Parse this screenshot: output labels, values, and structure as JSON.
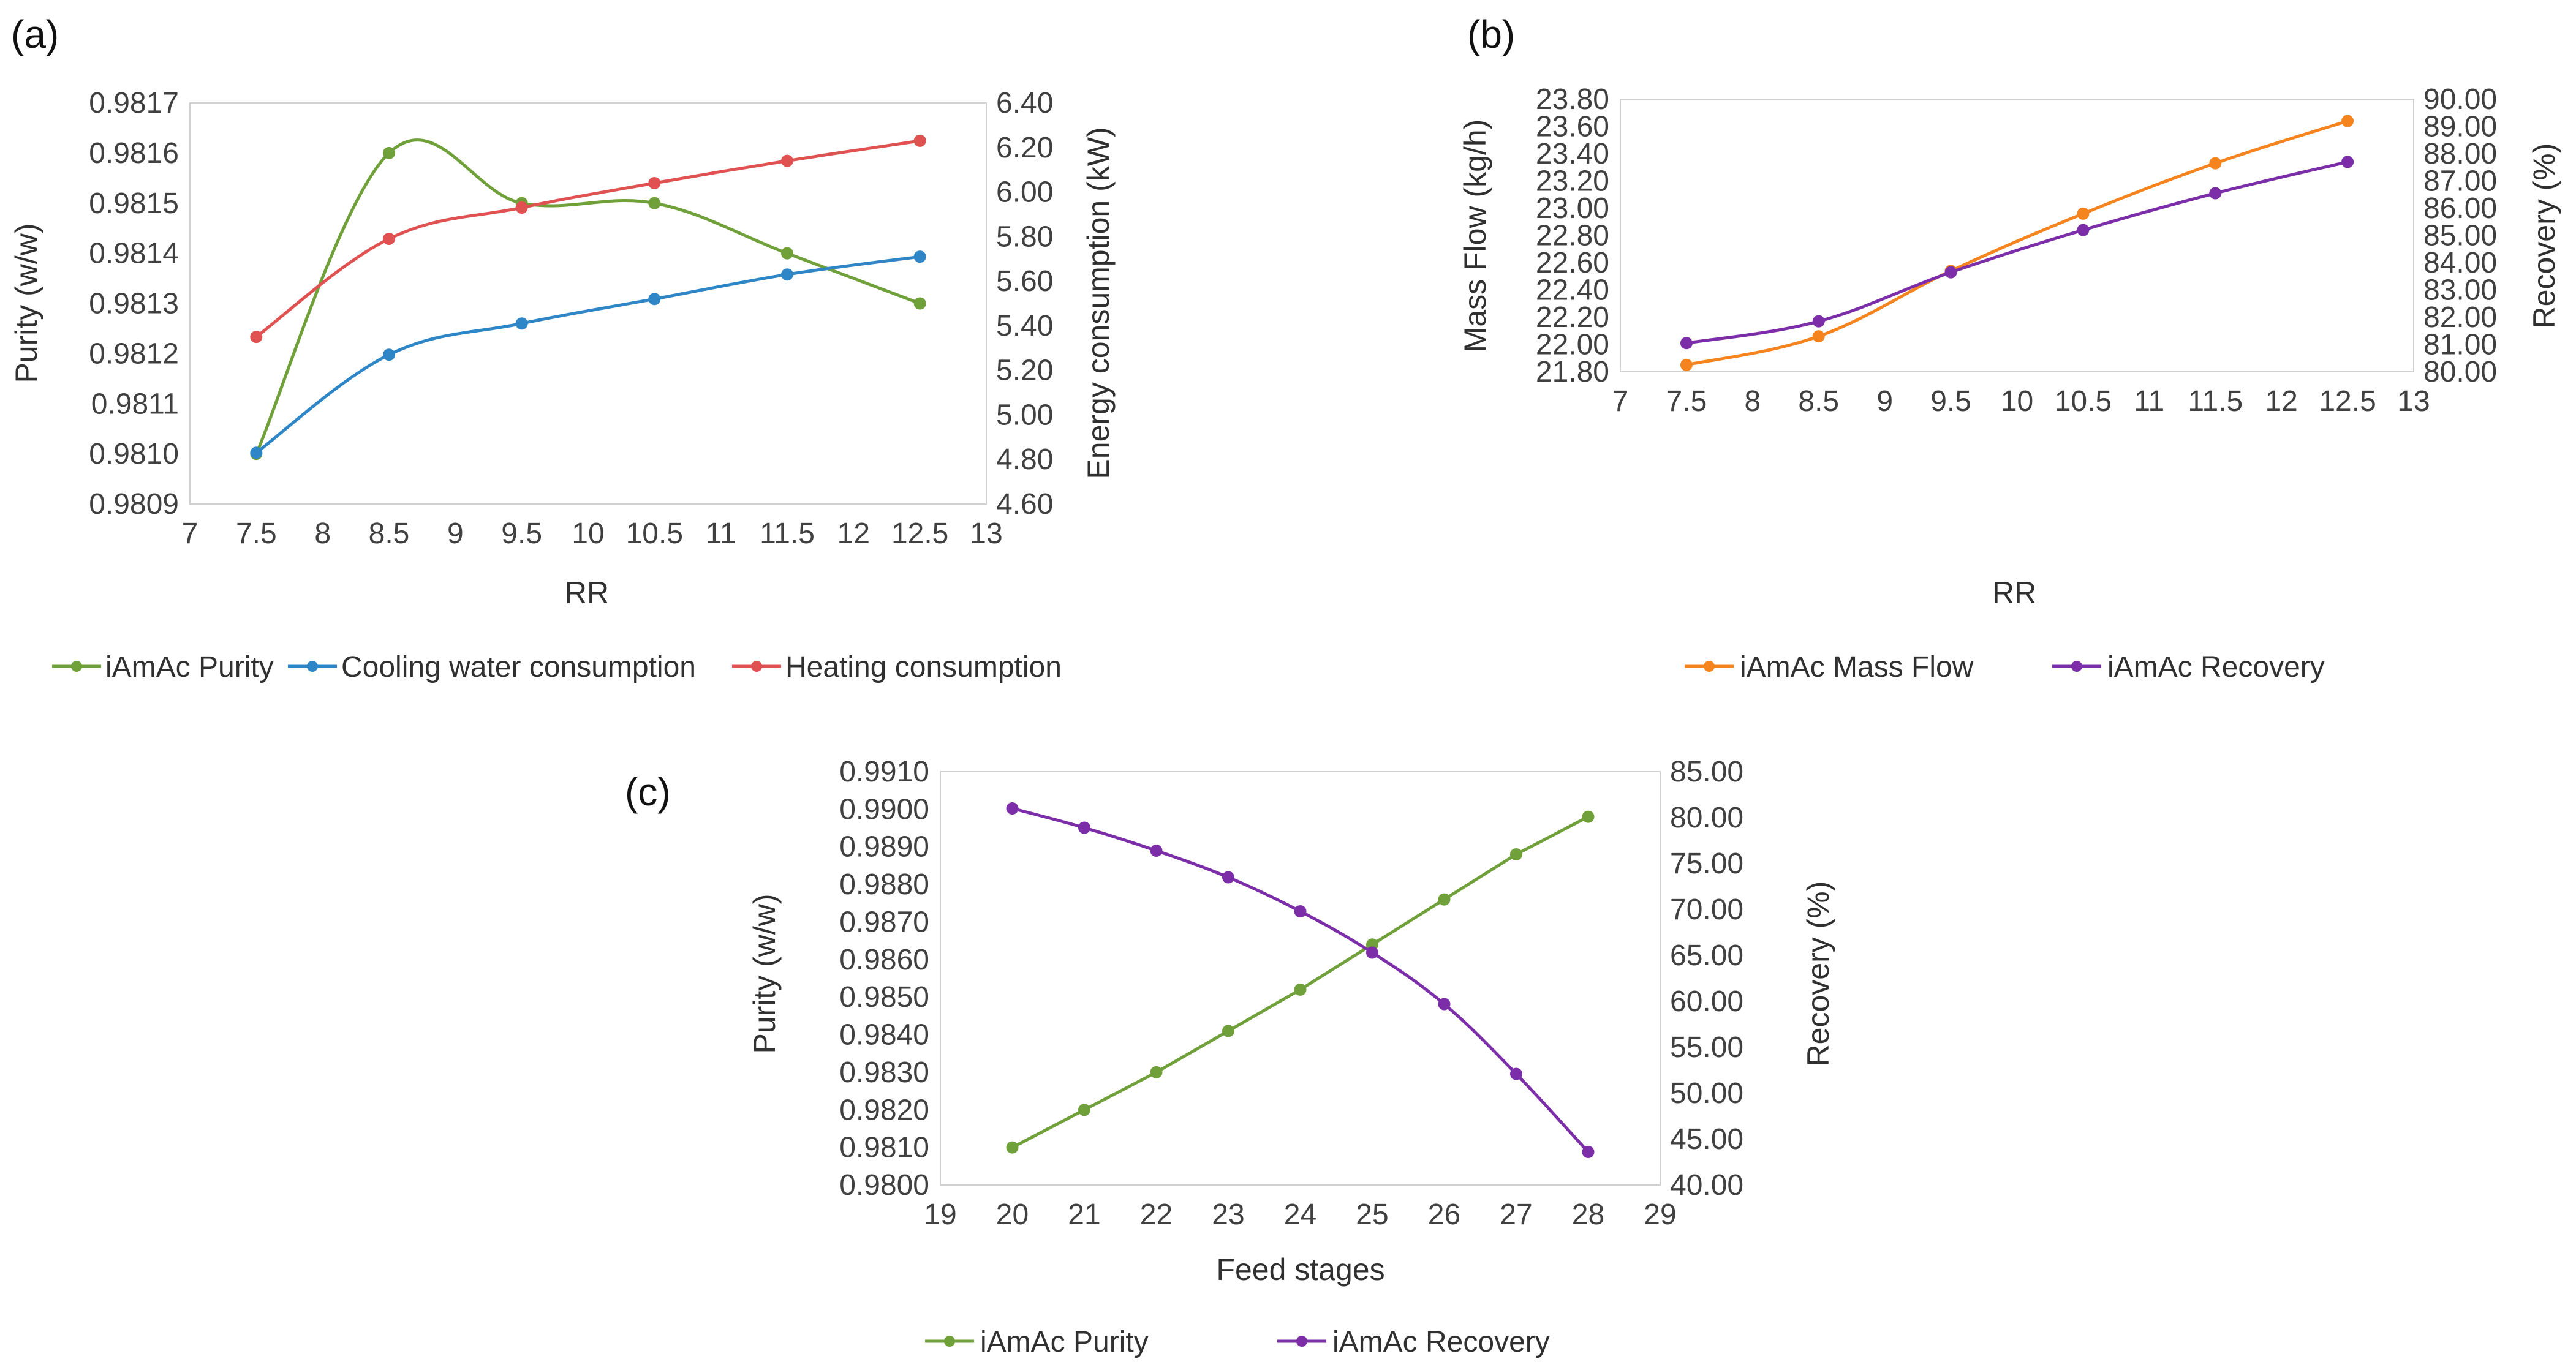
{
  "chart_data": [
    {
      "panel": "(a)",
      "type": "line",
      "xlabel": "RR",
      "ylabel": "Purity (w/w)",
      "ylabel_right": "Energy consumption (kW)",
      "xlim": [
        7,
        13
      ],
      "x_ticks": [
        "7",
        "7.5",
        "8",
        "8.5",
        "9",
        "9.5",
        "10",
        "10.5",
        "11",
        "11.5",
        "12",
        "12.5",
        "13"
      ],
      "ylim": [
        0.9809,
        0.9817
      ],
      "y_ticks": [
        "0.9809",
        "0.9810",
        "0.9811",
        "0.9812",
        "0.9813",
        "0.9814",
        "0.9815",
        "0.9816",
        "0.9817"
      ],
      "ylim_right": [
        4.6,
        6.4
      ],
      "y_ticks_right": [
        "4.60",
        "4.80",
        "5.00",
        "5.20",
        "5.40",
        "5.60",
        "5.80",
        "6.00",
        "6.20",
        "6.40"
      ],
      "x": [
        7.5,
        8.5,
        9.5,
        10.5,
        11.5,
        12.5
      ],
      "series": [
        {
          "name": "iAmAc Purity",
          "axis": "left",
          "color": "#70a03a",
          "smooth": true,
          "values": [
            0.981,
            0.9816,
            0.9815,
            0.9815,
            0.9814,
            0.9813
          ]
        },
        {
          "name": "Cooling water consumption",
          "axis": "right",
          "color": "#2f86c6",
          "smooth": true,
          "values": [
            4.83,
            5.27,
            5.41,
            5.52,
            5.63,
            5.71
          ]
        },
        {
          "name": "Heating consumption",
          "axis": "right",
          "color": "#e05252",
          "smooth": true,
          "values": [
            5.35,
            5.79,
            5.93,
            6.04,
            6.14,
            6.23
          ]
        }
      ],
      "legend": [
        "iAmAc Purity",
        "Cooling water consumption",
        "Heating consumption"
      ]
    },
    {
      "panel": "(b)",
      "type": "line",
      "xlabel": "RR",
      "ylabel": "Mass Flow (kg/h)",
      "ylabel_right": "Recovery (%)",
      "xlim": [
        7,
        13
      ],
      "x_ticks": [
        "7",
        "7.5",
        "8",
        "8.5",
        "9",
        "9.5",
        "10",
        "10.5",
        "11",
        "11.5",
        "12",
        "12.5",
        "13"
      ],
      "ylim": [
        21.8,
        23.8
      ],
      "y_ticks": [
        "21.80",
        "22.00",
        "22.20",
        "22.40",
        "22.60",
        "22.80",
        "23.00",
        "23.20",
        "23.40",
        "23.60",
        "23.80"
      ],
      "ylim_right": [
        80,
        90
      ],
      "y_ticks_right": [
        "80.00",
        "81.00",
        "82.00",
        "83.00",
        "84.00",
        "85.00",
        "86.00",
        "87.00",
        "88.00",
        "89.00",
        "90.00"
      ],
      "x": [
        7.5,
        8.5,
        9.5,
        10.5,
        11.5,
        12.5
      ],
      "series": [
        {
          "name": "iAmAc Mass Flow",
          "axis": "left",
          "color": "#f5841f",
          "smooth": true,
          "values": [
            21.85,
            22.06,
            22.54,
            22.96,
            23.33,
            23.64
          ]
        },
        {
          "name": "iAmAc Recovery",
          "axis": "right",
          "color": "#7c2ea8",
          "smooth": true,
          "values": [
            81.05,
            81.85,
            83.65,
            85.2,
            86.55,
            87.7
          ]
        }
      ],
      "legend": [
        "iAmAc Mass Flow",
        "iAmAc Recovery"
      ]
    },
    {
      "panel": "(c)",
      "type": "line",
      "xlabel": "Feed stages",
      "ylabel": "Purity (w/w)",
      "ylabel_right": "Recovery (%)",
      "xlim": [
        19,
        29
      ],
      "x_ticks": [
        "19",
        "20",
        "21",
        "22",
        "23",
        "24",
        "25",
        "26",
        "27",
        "28",
        "29"
      ],
      "ylim": [
        0.98,
        0.991
      ],
      "y_ticks": [
        "0.9800",
        "0.9810",
        "0.9820",
        "0.9830",
        "0.9840",
        "0.9850",
        "0.9860",
        "0.9870",
        "0.9880",
        "0.9890",
        "0.9900",
        "0.9910"
      ],
      "ylim_right": [
        40,
        85
      ],
      "y_ticks_right": [
        "40.00",
        "45.00",
        "50.00",
        "55.00",
        "60.00",
        "65.00",
        "70.00",
        "75.00",
        "80.00",
        "85.00"
      ],
      "x": [
        20,
        21,
        22,
        23,
        24,
        25,
        26,
        27,
        28
      ],
      "series": [
        {
          "name": "iAmAc Purity",
          "axis": "left",
          "color": "#70a03a",
          "smooth": false,
          "values": [
            0.981,
            0.982,
            0.983,
            0.9841,
            0.9852,
            0.9864,
            0.9876,
            0.9888,
            0.9898
          ]
        },
        {
          "name": "iAmAc Recovery",
          "axis": "right",
          "color": "#7c2ea8",
          "smooth": true,
          "values": [
            81.0,
            78.9,
            76.4,
            73.5,
            69.8,
            65.3,
            59.7,
            52.1,
            43.6
          ]
        }
      ],
      "legend": [
        "iAmAc Purity",
        "iAmAc Recovery"
      ]
    }
  ]
}
